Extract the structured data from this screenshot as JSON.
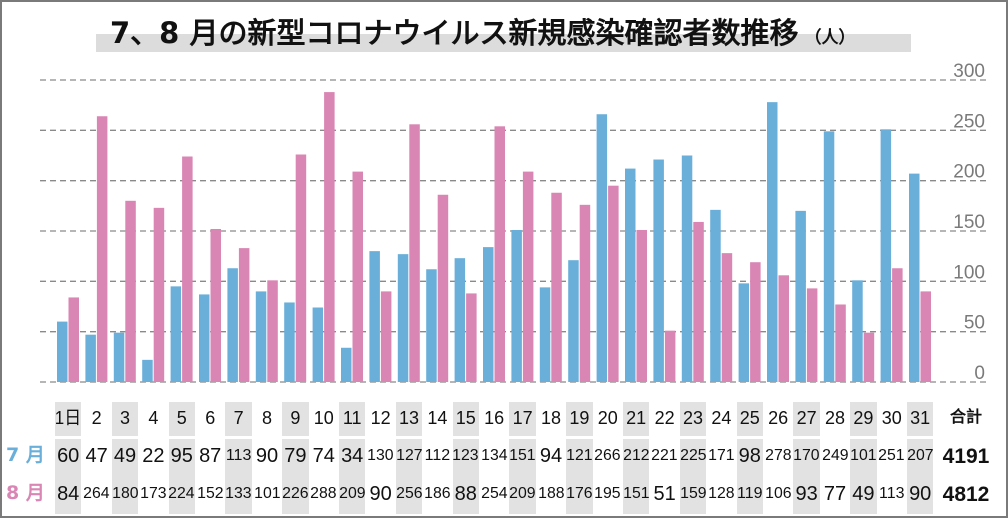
{
  "chart_data": {
    "type": "bar",
    "title": "7、8 月の新型コロナウイルス新規感染確認者数推移",
    "title_unit": "（人）",
    "xlabel": "",
    "ylabel": "",
    "ylim": [
      0,
      300
    ],
    "yticks": [
      "300",
      "250",
      "200",
      "150",
      "100",
      "50",
      "0"
    ],
    "ytick_values": [
      300,
      250,
      200,
      150,
      100,
      50,
      0
    ],
    "grid": true,
    "categories": [
      "1日",
      "2",
      "3",
      "4",
      "5",
      "6",
      "7",
      "8",
      "9",
      "10",
      "11",
      "12",
      "13",
      "14",
      "15",
      "16",
      "17",
      "18",
      "19",
      "20",
      "21",
      "22",
      "23",
      "24",
      "25",
      "26",
      "27",
      "28",
      "29",
      "30",
      "31"
    ],
    "series": [
      {
        "name": "7 月",
        "color": "#6aafd9",
        "values": [
          60,
          47,
          49,
          22,
          95,
          87,
          113,
          90,
          79,
          74,
          34,
          130,
          127,
          112,
          123,
          134,
          151,
          94,
          121,
          266,
          212,
          221,
          225,
          171,
          98,
          278,
          170,
          249,
          101,
          251,
          207
        ]
      },
      {
        "name": "8 月",
        "color": "#d986b4",
        "values": [
          84,
          264,
          180,
          173,
          224,
          152,
          133,
          101,
          226,
          288,
          209,
          90,
          256,
          186,
          88,
          254,
          209,
          188,
          176,
          195,
          151,
          51,
          159,
          128,
          119,
          106,
          93,
          77,
          49,
          113,
          90
        ]
      }
    ],
    "total_label": "合計",
    "totals": [
      "4191",
      "4812"
    ]
  }
}
